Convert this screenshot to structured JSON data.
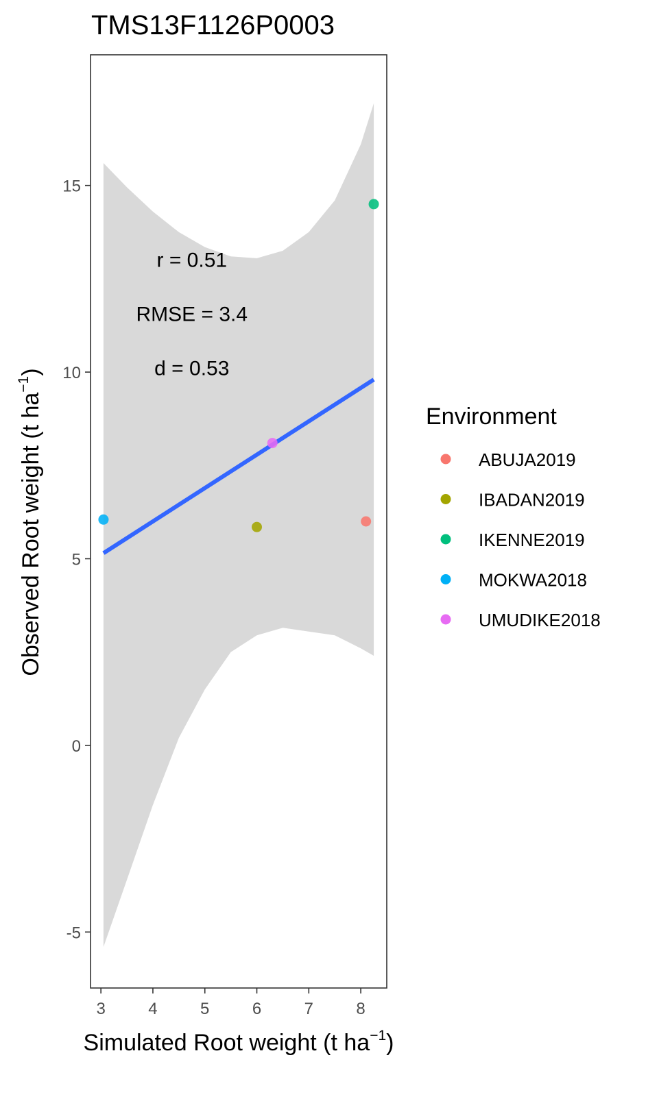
{
  "chart_data": {
    "type": "scatter",
    "title": "TMS13F1126P0003",
    "xlabel": {
      "main": "Simulated Root weight ",
      "unit_open": "(t ha",
      "sup": "−1",
      "unit_close": ")"
    },
    "ylabel": {
      "main": "Observed Root weight ",
      "unit_open": "(t ha",
      "sup": "−1",
      "unit_close": ")"
    },
    "xlim": [
      2.8,
      8.5
    ],
    "ylim": [
      -6.5,
      18.5
    ],
    "x_ticks": [
      3,
      4,
      5,
      6,
      7,
      8
    ],
    "y_ticks": [
      -5,
      0,
      5,
      10,
      15
    ],
    "x_tick_labels": [
      "3",
      "4",
      "5",
      "6",
      "7",
      "8"
    ],
    "y_tick_labels": [
      "-5",
      "0",
      "5",
      "10",
      "15"
    ],
    "grid": false,
    "points": [
      {
        "name": "ABUJA2019",
        "x": 8.1,
        "y": 6.0,
        "color": "#F8766D"
      },
      {
        "name": "IBADAN2019",
        "x": 6.0,
        "y": 5.85,
        "color": "#A3A500"
      },
      {
        "name": "IKENNE2019",
        "x": 8.25,
        "y": 14.5,
        "color": "#00BF7D"
      },
      {
        "name": "MOKWA2018",
        "x": 3.05,
        "y": 6.05,
        "color": "#00B0F6"
      },
      {
        "name": "UMUDIKE2018",
        "x": 6.3,
        "y": 8.1,
        "color": "#E76BF3"
      }
    ],
    "regression": {
      "color": "#3366FF",
      "x": [
        3.05,
        8.25
      ],
      "y": [
        5.15,
        9.8
      ]
    },
    "confidence_band": {
      "color": "#d9d9d9",
      "x": [
        3.05,
        3.5,
        4.0,
        4.5,
        5.0,
        5.5,
        6.0,
        6.5,
        7.0,
        7.5,
        8.0,
        8.25
      ],
      "upper": [
        15.6,
        14.95,
        14.3,
        13.75,
        13.35,
        13.1,
        13.05,
        13.25,
        13.75,
        14.6,
        16.1,
        17.2
      ],
      "lower": [
        -5.4,
        -3.6,
        -1.6,
        0.2,
        1.5,
        2.5,
        2.95,
        3.15,
        3.05,
        2.95,
        2.6,
        2.4
      ]
    },
    "annotations": [
      "r = 0.51",
      "RMSE = 3.4",
      "d = 0.53"
    ],
    "annotation_position": {
      "x": 4.75,
      "y": [
        13.0,
        11.55,
        10.1
      ]
    },
    "legend": {
      "title": "Environment",
      "placement": "right",
      "entries": [
        {
          "label": "ABUJA2019",
          "color": "#F8766D"
        },
        {
          "label": "IBADAN2019",
          "color": "#A3A500"
        },
        {
          "label": "IKENNE2019",
          "color": "#00BF7D"
        },
        {
          "label": "MOKWA2018",
          "color": "#00B0F6"
        },
        {
          "label": "UMUDIKE2018",
          "color": "#E76BF3"
        }
      ]
    }
  }
}
